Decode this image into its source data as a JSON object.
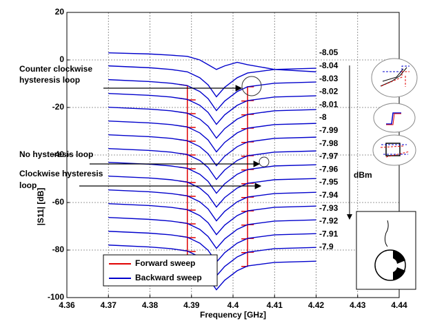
{
  "chart_data": {
    "type": "line",
    "xlabel": "Frequency [GHz]",
    "ylabel": "|S11| [dB]",
    "xlim": [
      4.36,
      4.44
    ],
    "ylim": [
      -100,
      20
    ],
    "xticks": [
      4.36,
      4.37,
      4.38,
      4.39,
      4.4,
      4.41,
      4.42,
      4.43,
      4.44
    ],
    "yticks": [
      20,
      0,
      -20,
      -40,
      -60,
      -80,
      -100
    ],
    "grid": true,
    "unit_label": "dBm",
    "legend": [
      {
        "name": "Forward sweep",
        "color": "#e00000"
      },
      {
        "name": "Backward sweep",
        "color": "#0000cc"
      }
    ],
    "x": [
      4.37,
      4.38,
      4.385,
      4.389,
      4.392,
      4.394,
      4.396,
      4.398,
      4.401,
      4.4035,
      4.41,
      4.42
    ],
    "series": [
      {
        "name": "-8.05",
        "color": "#0000cc",
        "values": [
          3,
          2.5,
          2,
          1.5,
          0,
          -2,
          -4,
          -2.5,
          -1,
          -2,
          -4,
          -5
        ]
      },
      {
        "name": "-8.04",
        "color": "#0000cc",
        "values": [
          -2.5,
          -3.3,
          -4,
          -5,
          -7.5,
          -10.5,
          -15.5,
          -11.5,
          -7.5,
          -5.5,
          -4,
          -3.5
        ]
      },
      {
        "name": "-8.03",
        "color": "#0000cc",
        "values": [
          -8.3,
          -9.1,
          -9.8,
          -10.8,
          -13.3,
          -16.3,
          -21.3,
          -17.3,
          -13.3,
          -11.3,
          -9.8,
          -9.3
        ]
      },
      {
        "name": "-8.02",
        "color": "#0000cc",
        "values": [
          -14.1,
          -14.9,
          -15.6,
          -16.6,
          -19.1,
          -22.1,
          -27.1,
          -23.1,
          -19.1,
          -17.1,
          -15.6,
          -15.1
        ]
      },
      {
        "name": "-8.01",
        "color": "#0000cc",
        "values": [
          -19.9,
          -20.7,
          -21.4,
          -22.4,
          -24.9,
          -27.9,
          -32.9,
          -28.9,
          -24.9,
          -22.9,
          -21.4,
          -20.9
        ]
      },
      {
        "name": "-8",
        "color": "#0000cc",
        "values": [
          -25.7,
          -26.5,
          -27.2,
          -28.2,
          -30.7,
          -33.7,
          -38.7,
          -34.7,
          -30.7,
          -28.7,
          -27.2,
          -26.7
        ]
      },
      {
        "name": "-7.99",
        "color": "#0000cc",
        "values": [
          -31.5,
          -32.3,
          -33,
          -34,
          -36.5,
          -39.5,
          -44.5,
          -40.5,
          -36.5,
          -34.5,
          -33,
          -32.5
        ]
      },
      {
        "name": "-7.98",
        "color": "#0000cc",
        "values": [
          -37.3,
          -38.1,
          -38.8,
          -39.8,
          -42.3,
          -45.3,
          -50.3,
          -46.3,
          -42.3,
          -40.3,
          -38.8,
          -38.3
        ]
      },
      {
        "name": "-7.97",
        "color": "#0000cc",
        "values": [
          -43.1,
          -43.9,
          -44.6,
          -45.6,
          -48.1,
          -51.1,
          -56.1,
          -52.1,
          -48.1,
          -46.1,
          -44.6,
          -44.1
        ]
      },
      {
        "name": "-7.96",
        "color": "#0000cc",
        "values": [
          -48.9,
          -49.7,
          -50.4,
          -51.4,
          -53.9,
          -56.9,
          -61.9,
          -57.9,
          -53.9,
          -51.9,
          -50.4,
          -49.9
        ]
      },
      {
        "name": "-7.95",
        "color": "#0000cc",
        "values": [
          -54.7,
          -55.5,
          -56.2,
          -57.2,
          -59.7,
          -62.7,
          -67.7,
          -63.7,
          -59.7,
          -57.7,
          -56.2,
          -55.7
        ]
      },
      {
        "name": "-7.94",
        "color": "#0000cc",
        "values": [
          -60.5,
          -61.3,
          -62,
          -63,
          -65.5,
          -68.5,
          -73.5,
          -69.5,
          -65.5,
          -63.5,
          -62,
          -61.5
        ]
      },
      {
        "name": "-7.93",
        "color": "#0000cc",
        "values": [
          -66.3,
          -67.1,
          -67.8,
          -68.8,
          -71.3,
          -74.3,
          -79.3,
          -75.3,
          -71.3,
          -69.3,
          -67.8,
          -67.3
        ]
      },
      {
        "name": "-7.92",
        "color": "#0000cc",
        "values": [
          -72.1,
          -72.9,
          -73.6,
          -74.6,
          -77.1,
          -80.1,
          -85.1,
          -81.1,
          -77.1,
          -75.1,
          -73.6,
          -73.1
        ]
      },
      {
        "name": "-7.91",
        "color": "#0000cc",
        "values": [
          -77.9,
          -78.7,
          -79.4,
          -80.4,
          -82.9,
          -85.9,
          -90.9,
          -86.9,
          -82.9,
          -80.9,
          -79.4,
          -78.9
        ]
      },
      {
        "name": "-7.9",
        "color": "#0000cc",
        "values": [
          -83.7,
          -84.5,
          -85.2,
          -86.2,
          -88.7,
          -91.7,
          -96.7,
          -92.7,
          -88.7,
          -86.7,
          -85.2,
          -84.7
        ]
      }
    ],
    "forward": {
      "color": "#e00000",
      "x": [
        4.387,
        4.389,
        4.389,
        4.391,
        4.397,
        4.402,
        4.4035,
        4.4035,
        4.405
      ],
      "series": [
        {
          "values": [
            -10.3,
            -10.8,
            -16.8,
            -16.8,
            null,
            -17.3,
            -17.3,
            -11.3,
            -11.3
          ]
        },
        {
          "values": [
            -16.1,
            -16.6,
            -22.6,
            -22.6,
            null,
            -23.1,
            -23.1,
            -17.1,
            -17.1
          ]
        },
        {
          "values": [
            -21.9,
            -22.4,
            -28.4,
            -28.4,
            null,
            -28.9,
            -28.9,
            -22.9,
            -22.9
          ]
        },
        {
          "values": [
            -27.7,
            -28.2,
            -34.2,
            -34.2,
            null,
            -34.7,
            -34.7,
            -28.7,
            -28.7
          ]
        },
        {
          "values": [
            -33.5,
            -34,
            -40,
            -40,
            null,
            -40.5,
            -40.5,
            -34.5,
            -34.5
          ]
        },
        {
          "values": [
            -39.3,
            -39.8,
            -45.8,
            -45.8,
            null,
            -46.3,
            -46.3,
            -40.3,
            -40.3
          ]
        },
        {
          "values": [
            -45.1,
            -45.6,
            -51.6,
            -51.6,
            null,
            -52.1,
            -52.1,
            -46.1,
            -46.1
          ]
        },
        {
          "values": [
            -50.9,
            -51.4,
            -57.4,
            -57.4,
            null,
            -57.9,
            -57.9,
            -51.9,
            -51.9
          ]
        },
        {
          "values": [
            -56.7,
            -57.2,
            -63.2,
            -63.2,
            null,
            -63.7,
            -63.7,
            -57.7,
            -57.7
          ]
        },
        {
          "values": [
            -62.5,
            -63,
            -69,
            -69,
            null,
            -69.5,
            -69.5,
            -63.5,
            -63.5
          ]
        },
        {
          "values": [
            -68.3,
            -68.8,
            -74.8,
            -74.8,
            null,
            -75.3,
            -75.3,
            -69.3,
            -69.3
          ]
        },
        {
          "values": [
            -74.1,
            -74.6,
            -80.6,
            -80.6,
            null,
            -81.1,
            -81.1,
            -75.1,
            -75.1
          ]
        },
        {
          "values": [
            -79.9,
            -80.4,
            -86.4,
            -86.4,
            null,
            -86.9,
            -86.9,
            -80.9,
            -80.9
          ]
        }
      ]
    },
    "annotations": [
      {
        "lines": [
          "Counter clockwise",
          "hysteresis loop"
        ]
      },
      {
        "lines": [
          "No hysteresis loop"
        ]
      },
      {
        "lines": [
          "Clockwise hysteresis",
          "loop"
        ]
      }
    ]
  }
}
